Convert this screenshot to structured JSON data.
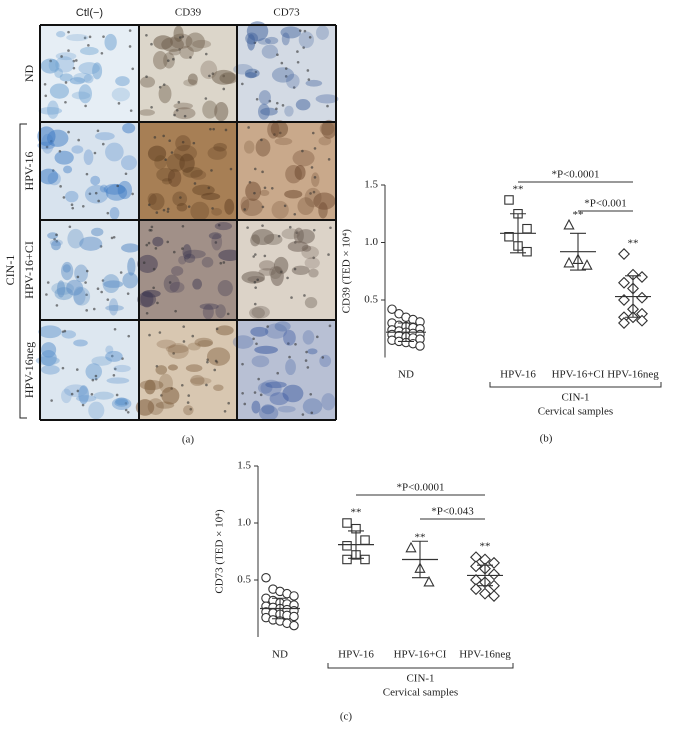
{
  "panel_a": {
    "columns": [
      "Ctl(−)",
      "CD39",
      "CD73"
    ],
    "rows": [
      "ND",
      "HPV-16",
      "HPV-16+CI",
      "HPV-16neg"
    ],
    "group": "CIN-1",
    "caption": "(a)"
  },
  "chart_data": [
    {
      "type": "dot",
      "ylabel": "CD39 (TED × 10⁴)",
      "ylim": [
        0,
        1.5
      ],
      "yticks": [
        0.5,
        {
          "value": 1.0,
          "label": "1.0"
        },
        1.5
      ],
      "categories": [
        "ND",
        "HPV-16",
        "HPV-16+CI",
        "HPV-16neg"
      ],
      "markers": [
        "circle",
        "square",
        "triangle",
        "diamond"
      ],
      "points": [
        [
          0.42,
          0.38,
          0.35,
          0.33,
          0.31,
          0.3,
          0.28,
          0.27,
          0.26,
          0.25,
          0.24,
          0.23,
          0.22,
          0.21,
          0.2,
          0.2,
          0.19,
          0.18,
          0.17,
          0.16,
          0.15,
          0.14,
          0.13,
          0.12,
          0.1
        ],
        [
          1.37,
          1.25,
          1.12,
          1.05,
          0.97,
          0.92
        ],
        [
          1.15,
          0.85,
          0.8,
          0.82
        ],
        [
          0.9,
          0.72,
          0.7,
          0.65,
          0.6,
          0.52,
          0.5,
          0.42,
          0.38,
          0.35,
          0.35,
          0.32,
          0.3
        ]
      ],
      "means": [
        0.22,
        1.08,
        0.92,
        0.53
      ],
      "sds": [
        0.08,
        0.17,
        0.16,
        0.18
      ],
      "stars": [
        null,
        "**",
        "**",
        "**"
      ],
      "comparisons": [
        {
          "between": [
            "HPV-16",
            "HPV-16neg"
          ],
          "label": "*P<0.0001"
        },
        {
          "between": [
            "HPV-16+CI",
            "HPV-16neg"
          ],
          "label": "*P<0.001"
        }
      ],
      "group": {
        "label": "CIN-1",
        "categories": [
          "HPV-16",
          "HPV-16+CI",
          "HPV-16neg"
        ]
      },
      "xlabel": "Cervical samples",
      "caption": "(b)"
    },
    {
      "type": "dot",
      "ylabel": "CD73 (TED × 10⁴)",
      "ylim": [
        0,
        1.5
      ],
      "yticks": [
        0.5,
        {
          "value": 1.0,
          "label": "1.0"
        },
        1.5
      ],
      "categories": [
        "ND",
        "HPV-16",
        "HPV-16+CI",
        "HPV-16neg"
      ],
      "markers": [
        "circle",
        "square",
        "triangle",
        "diamond"
      ],
      "points": [
        [
          0.52,
          0.42,
          0.4,
          0.38,
          0.36,
          0.34,
          0.32,
          0.3,
          0.29,
          0.28,
          0.27,
          0.26,
          0.25,
          0.24,
          0.23,
          0.22,
          0.21,
          0.2,
          0.19,
          0.18,
          0.17,
          0.15,
          0.14,
          0.12,
          0.1
        ],
        [
          1.0,
          0.95,
          0.85,
          0.8,
          0.72,
          0.68,
          0.68
        ],
        [
          0.78,
          0.6,
          0.48
        ],
        [
          0.7,
          0.68,
          0.65,
          0.62,
          0.6,
          0.55,
          0.5,
          0.48,
          0.45,
          0.42,
          0.38,
          0.36
        ]
      ],
      "means": [
        0.25,
        0.81,
        0.68,
        0.54
      ],
      "sds": [
        0.09,
        0.12,
        0.16,
        0.09
      ],
      "stars": [
        null,
        "**",
        "**",
        "**"
      ],
      "comparisons": [
        {
          "between": [
            "HPV-16",
            "HPV-16neg"
          ],
          "label": "*P<0.0001"
        },
        {
          "between": [
            "HPV-16+CI",
            "HPV-16neg"
          ],
          "label": "*P<0.043"
        }
      ],
      "group": {
        "label": "CIN-1",
        "categories": [
          "HPV-16",
          "HPV-16+CI",
          "HPV-16neg"
        ]
      },
      "xlabel": "Cervical samples",
      "caption": "(c)"
    }
  ]
}
